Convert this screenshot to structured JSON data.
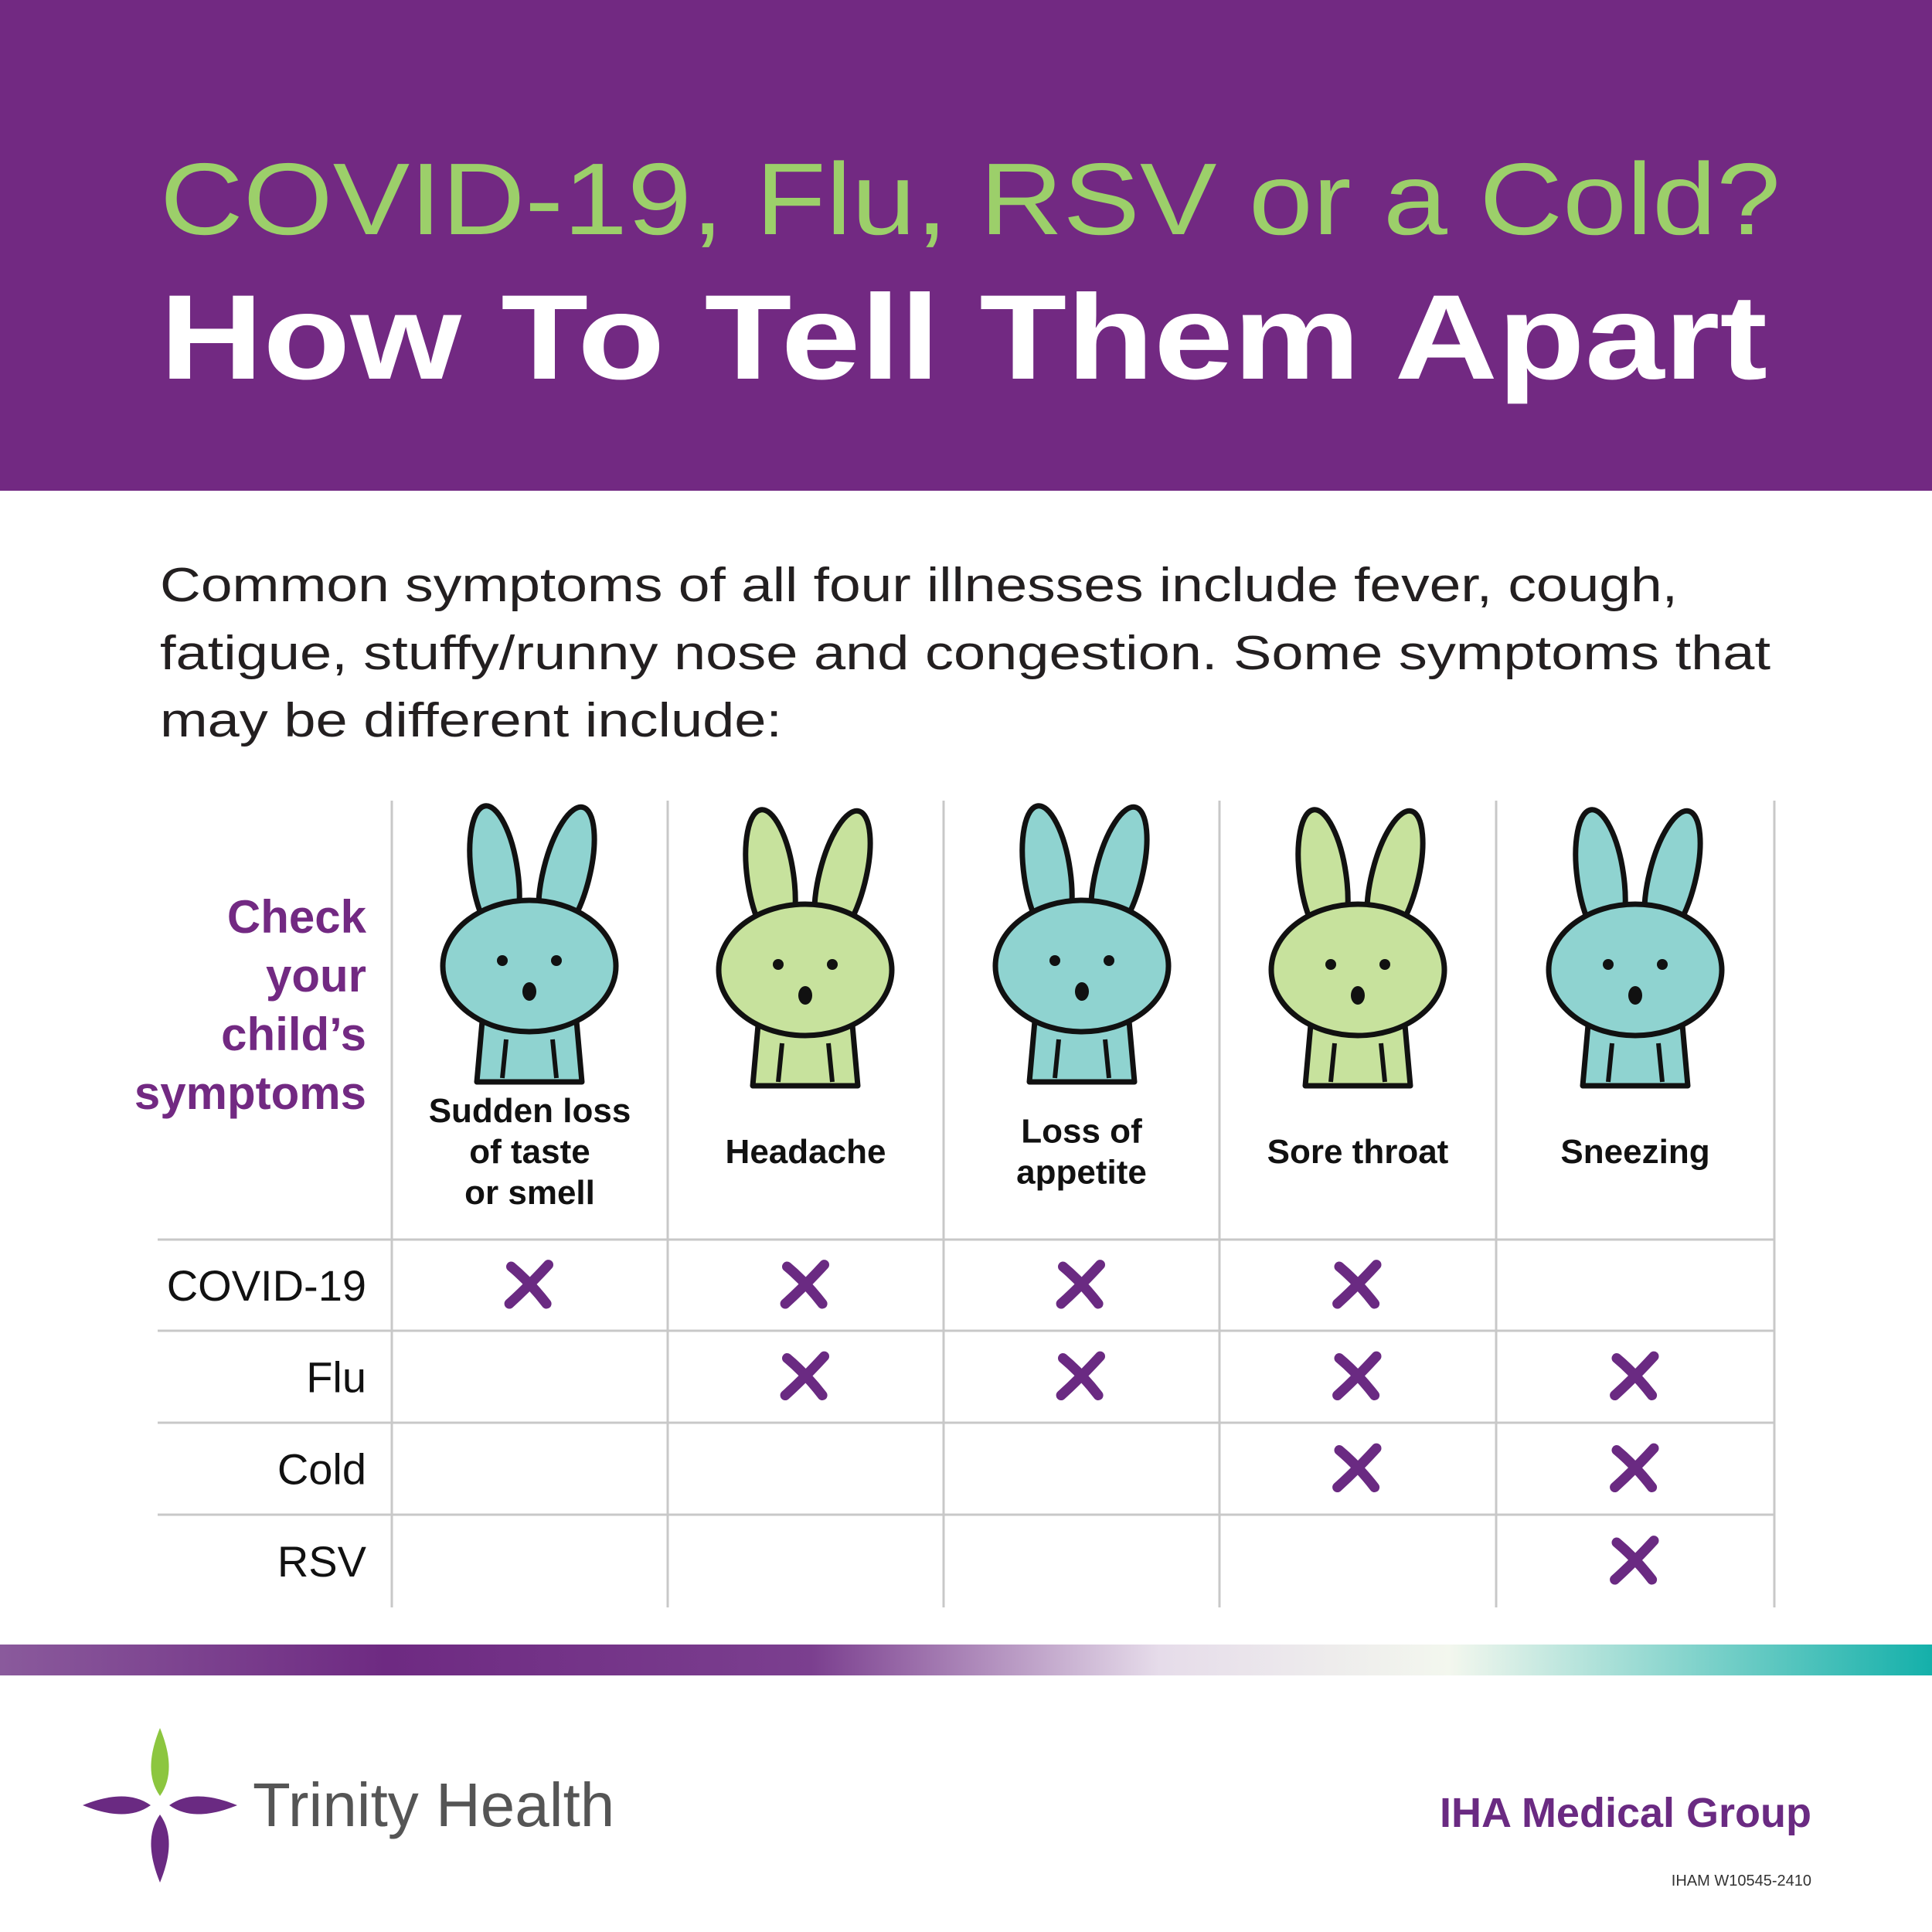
{
  "header": {
    "title": "COVID-19, Flu, RSV or a Cold?",
    "subtitle": "How To Tell Them Apart"
  },
  "intro": [
    "Common symptoms of all four illnesses include fever, cough,",
    "fatigue, stuffy/runny nose and congestion. Some symptoms that",
    "may be different include:"
  ],
  "table": {
    "corner": [
      "Check",
      "your",
      "child’s",
      "symptoms"
    ],
    "columns": [
      [
        "Sudden loss",
        "of taste",
        "or smell"
      ],
      [
        "Headache"
      ],
      [
        "Loss of",
        "appetite"
      ],
      [
        "Sore throat"
      ],
      [
        "Sneezing"
      ]
    ],
    "rows": [
      {
        "label": "COVID-19",
        "cells": [
          true,
          true,
          true,
          true,
          false
        ]
      },
      {
        "label": "Flu",
        "cells": [
          false,
          true,
          true,
          true,
          true
        ]
      },
      {
        "label": "Cold",
        "cells": [
          false,
          false,
          false,
          true,
          true
        ]
      },
      {
        "label": "RSV",
        "cells": [
          false,
          false,
          false,
          false,
          true
        ]
      }
    ]
  },
  "footer": {
    "brand": "Trinity Health",
    "group": "IHA Medical Group",
    "code": "IHAM W10545-2410"
  }
}
